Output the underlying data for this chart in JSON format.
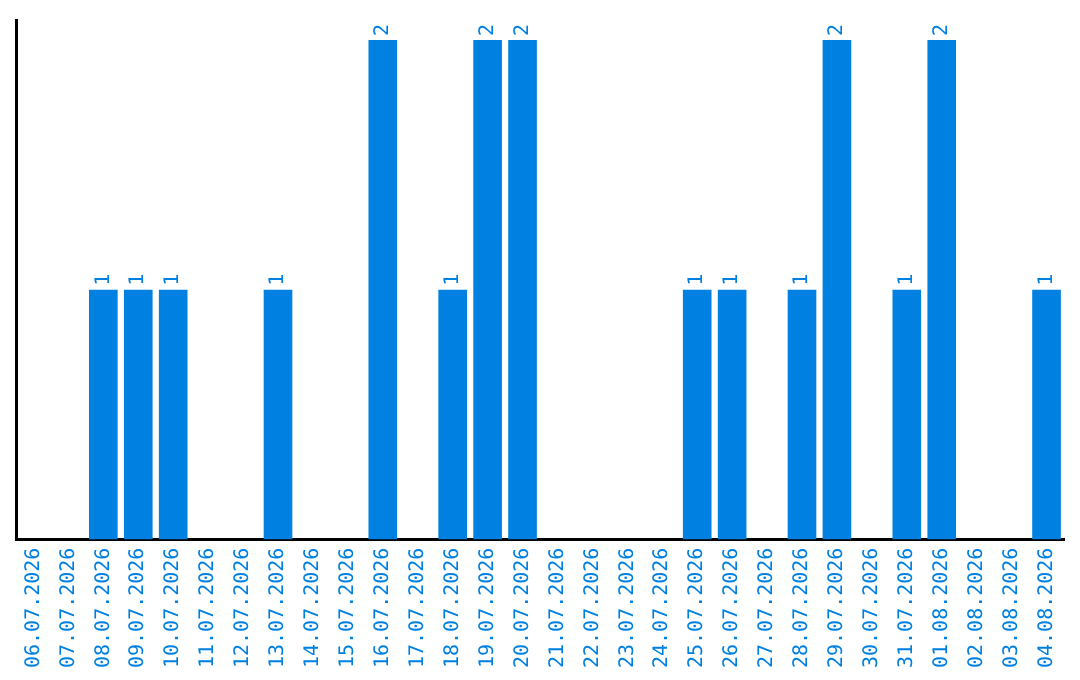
{
  "chart_data": {
    "type": "bar",
    "categories": [
      "06.07.2026",
      "07.07.2026",
      "08.07.2026",
      "09.07.2026",
      "10.07.2026",
      "11.07.2026",
      "12.07.2026",
      "13.07.2026",
      "14.07.2026",
      "15.07.2026",
      "16.07.2026",
      "17.07.2026",
      "18.07.2026",
      "19.07.2026",
      "20.07.2026",
      "21.07.2026",
      "22.07.2026",
      "23.07.2026",
      "24.07.2026",
      "25.07.2026",
      "26.07.2026",
      "27.07.2026",
      "28.07.2026",
      "29.07.2026",
      "30.07.2026",
      "31.07.2026",
      "01.08.2026",
      "02.08.2026",
      "03.08.2026",
      "04.08.2026"
    ],
    "values": [
      0,
      0,
      1,
      1,
      1,
      0,
      0,
      1,
      0,
      0,
      2,
      0,
      1,
      2,
      2,
      0,
      0,
      0,
      0,
      1,
      1,
      0,
      1,
      2,
      0,
      1,
      2,
      0,
      0,
      1
    ],
    "value_labels": [
      null,
      null,
      "1",
      "1",
      "1",
      null,
      null,
      "1",
      null,
      null,
      "2",
      null,
      "1",
      "2",
      "2",
      null,
      null,
      null,
      null,
      "1",
      "1",
      null,
      "1",
      "2",
      null,
      "1",
      "2",
      null,
      null,
      "1"
    ],
    "color": "#0080e0",
    "tick_labels": "x",
    "grid": false,
    "legend": false
  }
}
